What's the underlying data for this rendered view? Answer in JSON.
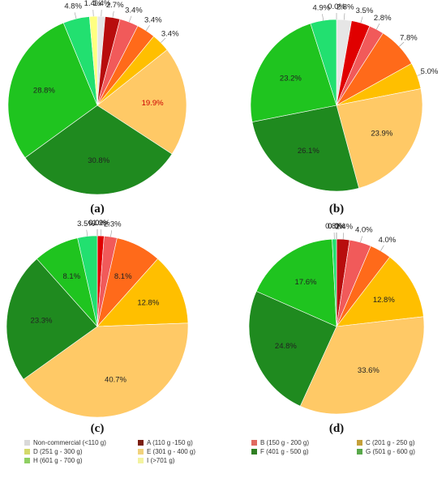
{
  "legend": [
    {
      "label": "Non-commercial (<110 g)",
      "color": "#d9d9d9"
    },
    {
      "label": "A (110 g -150 g)",
      "color": "#7b1f12"
    },
    {
      "label": "B (150 g - 200 g)",
      "color": "#e06a60"
    },
    {
      "label": "C (201 g - 250 g)",
      "color": "#c5a03a"
    },
    {
      "label": "D (251 g - 300 g)",
      "color": "#d3d96a"
    },
    {
      "label": "E (301 g - 400 g)",
      "color": "#f1d27c"
    },
    {
      "label": "F (401 g - 500 g)",
      "color": "#2f7f22"
    },
    {
      "label": "G (501 g - 600 g)",
      "color": "#58a84a"
    },
    {
      "label": "H (601 g - 700 g)",
      "color": "#8fcf63"
    },
    {
      "label": "I (>701 g)",
      "color": "#f3f3a0"
    }
  ],
  "chart_data": [
    {
      "type": "pie",
      "panel_label": "(a)",
      "slices": [
        {
          "category": "Non-commercial (<110 g)",
          "value": 1.4,
          "label": "1.4%",
          "color": "#e6e6e6"
        },
        {
          "category": "A (110 g -150 g)",
          "value": 2.7,
          "label": "2.7%",
          "color": "#b80d0d"
        },
        {
          "category": "B (150 g - 200 g)",
          "value": 3.4,
          "label": "3.4%",
          "color": "#f15a5a"
        },
        {
          "category": "C (201 g - 250 g)",
          "value": 3.4,
          "label": "3.4%",
          "color": "#ff6a1a"
        },
        {
          "category": "D (251 g - 300 g)",
          "value": 3.4,
          "label": "3.4%",
          "color": "#ffbf00"
        },
        {
          "category": "E (301 g - 400 g)",
          "value": 19.9,
          "label": "19.9%",
          "color": "#ffc966"
        },
        {
          "category": "F (401 g - 500 g)",
          "value": 30.8,
          "label": "30.8%",
          "color": "#1f8a1f"
        },
        {
          "category": "G (501 g - 600 g)",
          "value": 28.8,
          "label": "28.8%",
          "color": "#1fc41f"
        },
        {
          "category": "H (601 g - 700 g)",
          "value": 4.8,
          "label": "4.8%",
          "color": "#22e070"
        },
        {
          "category": "I (>701 g)",
          "value": 1.4,
          "label": "1.4%",
          "color": "#ffff80"
        }
      ]
    },
    {
      "type": "pie",
      "panel_label": "(b)",
      "slices": [
        {
          "category": "Non-commercial (<110 g)",
          "value": 2.8,
          "label": "2.8%",
          "color": "#e6e6e6"
        },
        {
          "category": "A (110 g -150 g)",
          "value": 3.5,
          "label": "3.5%",
          "color": "#e00000"
        },
        {
          "category": "B (150 g - 200 g)",
          "value": 2.8,
          "label": "2.8%",
          "color": "#f15a5a"
        },
        {
          "category": "C (201 g - 250 g)",
          "value": 7.8,
          "label": "7.8%",
          "color": "#ff6a1a"
        },
        {
          "category": "D (251 g - 300 g)",
          "value": 5.0,
          "label": "5.0%",
          "color": "#ffbf00"
        },
        {
          "category": "E (301 g - 400 g)",
          "value": 23.9,
          "label": "23.9%",
          "color": "#ffc966"
        },
        {
          "category": "F (401 g - 500 g)",
          "value": 26.1,
          "label": "26.1%",
          "color": "#1f8a1f"
        },
        {
          "category": "G (501 g - 600 g)",
          "value": 23.2,
          "label": "23.2%",
          "color": "#1fc41f"
        },
        {
          "category": "H (601 g - 700 g)",
          "value": 4.9,
          "label": "4.9%",
          "color": "#22e070"
        },
        {
          "category": "I (>701 g)",
          "value": 0.0,
          "label": "0.0%",
          "color": "#ffff80"
        }
      ]
    },
    {
      "type": "pie",
      "panel_label": "(c)",
      "slices": [
        {
          "category": "Non-commercial (<110 g)",
          "value": 0.0,
          "label": "0.0%",
          "color": "#e6e6e6"
        },
        {
          "category": "A (110 g -150 g)",
          "value": 1.2,
          "label": "1.2%",
          "color": "#e00000"
        },
        {
          "category": "B (150 g - 200 g)",
          "value": 2.3,
          "label": "2.3%",
          "color": "#f15a5a"
        },
        {
          "category": "C (201 g - 250 g)",
          "value": 8.1,
          "label": "8.1%",
          "color": "#ff6a1a"
        },
        {
          "category": "D (251 g - 300 g)",
          "value": 12.8,
          "label": "12.8%",
          "color": "#ffbf00"
        },
        {
          "category": "E (301 g - 400 g)",
          "value": 40.7,
          "label": "40.7%",
          "color": "#ffc966"
        },
        {
          "category": "F (401 g - 500 g)",
          "value": 23.3,
          "label": "23.3%",
          "color": "#1f8a1f"
        },
        {
          "category": "G (501 g - 600 g)",
          "value": 8.1,
          "label": "8.1%",
          "color": "#1fc41f"
        },
        {
          "category": "H (601 g - 700 g)",
          "value": 3.5,
          "label": "3.5%",
          "color": "#22e070"
        },
        {
          "category": "I (>701 g)",
          "value": 0.0,
          "label": "0.0%",
          "color": "#ffff80"
        }
      ]
    },
    {
      "type": "pie",
      "panel_label": "(d)",
      "slices": [
        {
          "category": "Non-commercial (<110 g)",
          "value": 0.0,
          "label": "0.0%",
          "color": "#e6e6e6"
        },
        {
          "category": "A (110 g -150 g)",
          "value": 2.4,
          "label": "2.4%",
          "color": "#b80d0d"
        },
        {
          "category": "B (150 g - 200 g)",
          "value": 4.0,
          "label": "4.0%",
          "color": "#f15a5a"
        },
        {
          "category": "C (201 g - 250 g)",
          "value": 4.0,
          "label": "4.0%",
          "color": "#ff6a1a"
        },
        {
          "category": "D (251 g - 300 g)",
          "value": 12.8,
          "label": "12.8%",
          "color": "#ffbf00"
        },
        {
          "category": "E (301 g - 400 g)",
          "value": 33.6,
          "label": "33.6%",
          "color": "#ffc966"
        },
        {
          "category": "F (401 g - 500 g)",
          "value": 24.8,
          "label": "24.8%",
          "color": "#1f8a1f"
        },
        {
          "category": "G (501 g - 600 g)",
          "value": 17.6,
          "label": "17.6%",
          "color": "#1fc41f"
        },
        {
          "category": "H (601 g - 700 g)",
          "value": 0.8,
          "label": "0.8%",
          "color": "#22e070"
        },
        {
          "category": "I (>701 g)",
          "value": 0.0,
          "label": "0.0%",
          "color": "#ffff80"
        }
      ]
    }
  ]
}
